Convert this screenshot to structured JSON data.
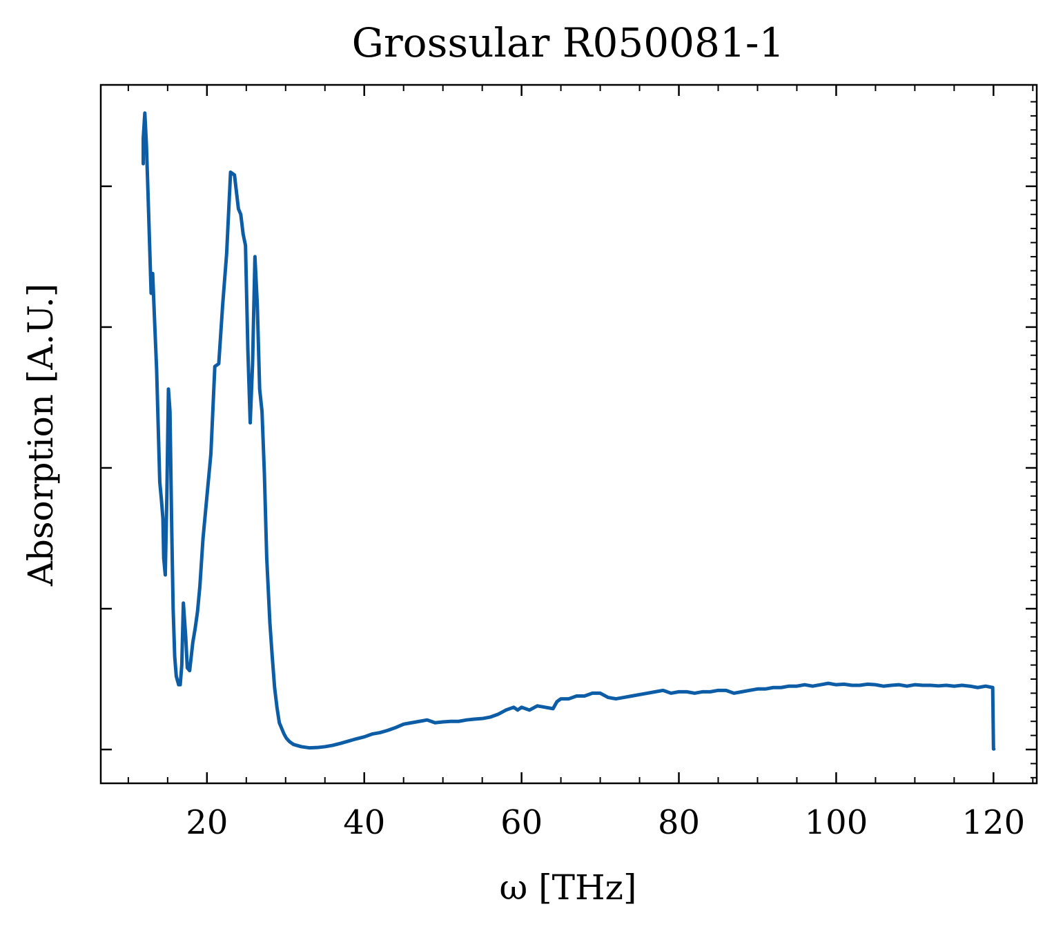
{
  "chart_data": {
    "type": "line",
    "title": "Grossular R050081-1",
    "xlabel": "ω [THz]",
    "ylabel": "Absorption [A.U.]",
    "xlim": [
      6.5,
      125.5
    ],
    "ylim": [
      -0.12,
      2.36
    ],
    "x_ticks": [
      20,
      40,
      60,
      80,
      100,
      120
    ],
    "x_tick_labels": [
      "20",
      "40",
      "60",
      "80",
      "100",
      "120"
    ],
    "y_ticks": [
      0,
      0.5,
      1.0,
      1.5,
      2.0
    ],
    "y_tick_labels_shown": false,
    "grid": false,
    "tick_direction": "in",
    "series": [
      {
        "color": "#0c5da5",
        "x": [
          11.9,
          11.9,
          12.1,
          12.3,
          12.5,
          12.7,
          12.9,
          13.1,
          13.3,
          13.6,
          13.8,
          14.0,
          14.2,
          14.4,
          14.5,
          14.7,
          14.9,
          15.1,
          15.3,
          15.5,
          15.7,
          15.9,
          16.1,
          16.4,
          16.6,
          16.8,
          17.0,
          17.3,
          17.5,
          17.8,
          18.0,
          18.2,
          18.5,
          18.8,
          19.1,
          19.5,
          20.0,
          20.5,
          21.0,
          21.5,
          22.0,
          22.5,
          23.0,
          23.5,
          24.0,
          24.3,
          24.6,
          24.9,
          25.2,
          25.5,
          25.8,
          26.1,
          26.4,
          26.7,
          27.0,
          27.3,
          27.6,
          28.0,
          28.3,
          28.6,
          28.9,
          29.2,
          29.5,
          29.8,
          30.1,
          30.5,
          31.0,
          32.0,
          33.0,
          34.0,
          35.0,
          36.0,
          37.0,
          38.0,
          39.0,
          40.0,
          41.0,
          42.0,
          43.0,
          44.0,
          45.0,
          46.0,
          47.0,
          48.0,
          49.0,
          50.0,
          51.0,
          52.0,
          53.0,
          54.0,
          55.0,
          56.0,
          57.0,
          58.0,
          59.0,
          59.5,
          60.0,
          61.0,
          62.0,
          63.0,
          64.0,
          64.5,
          65.0,
          66.0,
          67.0,
          68.0,
          69.0,
          70.0,
          71.0,
          72.0,
          73.0,
          74.0,
          75.0,
          76.0,
          77.0,
          78.0,
          79.0,
          80.0,
          81.0,
          82.0,
          83.0,
          84.0,
          85.0,
          86.0,
          87.0,
          88.0,
          89.0,
          90.0,
          91.0,
          92.0,
          93.0,
          94.0,
          95.0,
          96.0,
          97.0,
          98.0,
          99.0,
          100.0,
          101.0,
          102.0,
          103.0,
          104.0,
          105.0,
          106.0,
          107.0,
          108.0,
          109.0,
          110.0,
          111.0,
          112.0,
          113.0,
          114.0,
          115.0,
          116.0,
          117.0,
          118.0,
          119.0,
          119.9,
          120.0,
          120.05
        ],
        "y": [
          2.08,
          2.17,
          2.26,
          2.15,
          1.98,
          1.8,
          1.62,
          1.69,
          1.55,
          1.35,
          1.15,
          0.95,
          0.89,
          0.82,
          0.68,
          0.62,
          0.9,
          1.28,
          1.2,
          0.82,
          0.5,
          0.33,
          0.26,
          0.23,
          0.23,
          0.3,
          0.52,
          0.4,
          0.29,
          0.28,
          0.33,
          0.38,
          0.43,
          0.49,
          0.58,
          0.75,
          0.9,
          1.05,
          1.36,
          1.37,
          1.58,
          1.76,
          2.05,
          2.04,
          1.92,
          1.9,
          1.83,
          1.79,
          1.42,
          1.16,
          1.37,
          1.75,
          1.58,
          1.28,
          1.2,
          0.98,
          0.68,
          0.45,
          0.33,
          0.22,
          0.15,
          0.095,
          0.075,
          0.055,
          0.04,
          0.028,
          0.018,
          0.01,
          0.006,
          0.007,
          0.01,
          0.015,
          0.022,
          0.03,
          0.038,
          0.045,
          0.055,
          0.06,
          0.068,
          0.078,
          0.09,
          0.095,
          0.1,
          0.105,
          0.095,
          0.098,
          0.1,
          0.1,
          0.105,
          0.108,
          0.11,
          0.115,
          0.125,
          0.14,
          0.15,
          0.14,
          0.15,
          0.14,
          0.155,
          0.15,
          0.145,
          0.17,
          0.18,
          0.18,
          0.19,
          0.19,
          0.2,
          0.2,
          0.185,
          0.18,
          0.185,
          0.19,
          0.195,
          0.2,
          0.205,
          0.21,
          0.2,
          0.205,
          0.205,
          0.2,
          0.205,
          0.205,
          0.21,
          0.21,
          0.2,
          0.205,
          0.21,
          0.215,
          0.215,
          0.22,
          0.22,
          0.225,
          0.225,
          0.23,
          0.225,
          0.23,
          0.235,
          0.23,
          0.232,
          0.228,
          0.228,
          0.232,
          0.23,
          0.225,
          0.228,
          0.23,
          0.225,
          0.23,
          0.228,
          0.228,
          0.226,
          0.228,
          0.225,
          0.228,
          0.225,
          0.22,
          0.225,
          0.22,
          0.002,
          0.002
        ]
      }
    ]
  }
}
